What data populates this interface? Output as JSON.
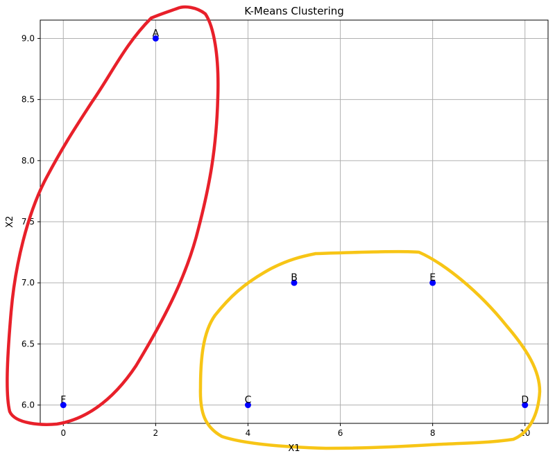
{
  "chart_data": {
    "type": "scatter",
    "title": "K-Means Clustering",
    "xlabel": "X1",
    "ylabel": "X2",
    "xlim": [
      -0.5,
      10.5
    ],
    "ylim": [
      5.85,
      9.15
    ],
    "x_ticks": [
      0,
      2,
      4,
      6,
      8,
      10
    ],
    "y_ticks": [
      6.0,
      6.5,
      7.0,
      7.5,
      8.0,
      8.5,
      9.0
    ],
    "grid": true,
    "points": [
      {
        "label": "A",
        "x": 2,
        "y": 9
      },
      {
        "label": "B",
        "x": 5,
        "y": 7
      },
      {
        "label": "C",
        "x": 4,
        "y": 6
      },
      {
        "label": "D",
        "x": 10,
        "y": 6
      },
      {
        "label": "E",
        "x": 8,
        "y": 7
      },
      {
        "label": "F",
        "x": 0,
        "y": 6
      }
    ],
    "point_color": "#0000ff",
    "annotations": [
      {
        "shape": "hand-drawn-loop",
        "color": "#e8202a",
        "encloses": [
          "A",
          "F"
        ]
      },
      {
        "shape": "hand-drawn-loop",
        "color": "#f7c516",
        "encloses": [
          "B",
          "C",
          "D",
          "E"
        ]
      }
    ]
  }
}
